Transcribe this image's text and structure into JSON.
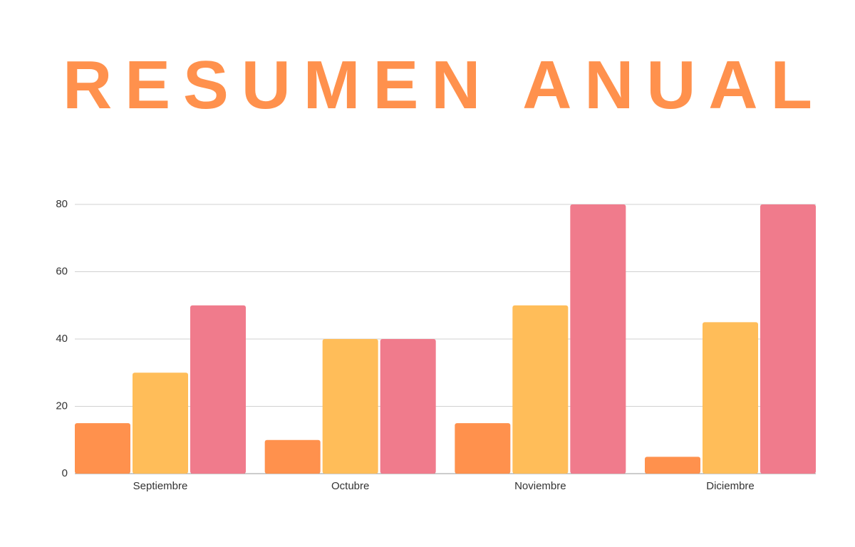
{
  "chart_data": {
    "type": "bar",
    "title": "RESUMEN ANUAL",
    "categories": [
      "Septiembre",
      "Octubre",
      "Noviembre",
      "Diciembre"
    ],
    "series": [
      {
        "color": "#ff914d",
        "values": [
          15,
          10,
          15,
          5
        ]
      },
      {
        "color": "#ffbd59",
        "values": [
          30,
          40,
          50,
          45
        ]
      },
      {
        "color": "#f07b8c",
        "values": [
          50,
          40,
          80,
          80
        ]
      }
    ],
    "ylim": [
      0,
      80
    ],
    "yticks": [
      0,
      20,
      40,
      60,
      80
    ],
    "grid": true
  }
}
